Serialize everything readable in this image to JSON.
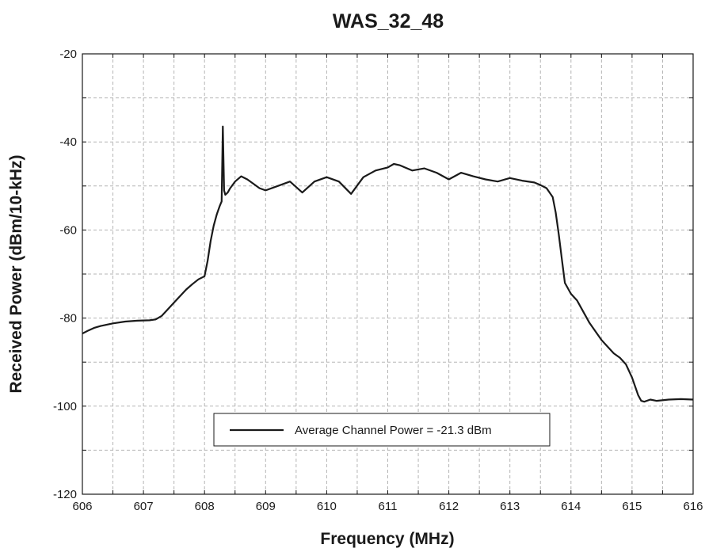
{
  "chart_data": {
    "type": "line",
    "title": "WAS_32_48",
    "xlabel": "Frequency (MHz)",
    "ylabel": "Received Power (dBm/10-kHz)",
    "xlim": [
      606,
      616
    ],
    "ylim": [
      -120,
      -20
    ],
    "xticks": [
      "606",
      "607",
      "608",
      "609",
      "610",
      "611",
      "612",
      "613",
      "614",
      "615",
      "616"
    ],
    "yticks": [
      "-20",
      "-40",
      "-60",
      "-80",
      "-100",
      "-120"
    ],
    "grid": true,
    "legend": {
      "placement": "lower-center",
      "entries": [
        "Average Channel Power = -21.3 dBm"
      ]
    },
    "series": [
      {
        "name": "Average Channel Power = -21.3 dBm",
        "color": "#1a1a1a",
        "x": [
          606.0,
          606.1,
          606.2,
          606.3,
          606.4,
          606.5,
          606.7,
          606.9,
          607.1,
          607.2,
          607.3,
          607.4,
          607.5,
          607.6,
          607.7,
          607.8,
          607.9,
          608.0,
          608.05,
          608.1,
          608.15,
          608.2,
          608.25,
          608.28,
          608.3,
          608.32,
          608.34,
          608.38,
          608.42,
          608.5,
          608.6,
          608.7,
          608.8,
          608.9,
          609.0,
          609.2,
          609.4,
          609.6,
          609.8,
          610.0,
          610.2,
          610.4,
          610.6,
          610.8,
          611.0,
          611.1,
          611.2,
          611.4,
          611.6,
          611.8,
          612.0,
          612.2,
          612.4,
          612.6,
          612.8,
          613.0,
          613.2,
          613.4,
          613.5,
          613.6,
          613.7,
          613.75,
          613.8,
          613.85,
          613.9,
          614.0,
          614.1,
          614.2,
          614.3,
          614.4,
          614.5,
          614.6,
          614.7,
          614.8,
          614.9,
          615.0,
          615.1,
          615.15,
          615.2,
          615.3,
          615.4,
          615.6,
          615.8,
          616.0
        ],
        "y": [
          -83.5,
          -82.8,
          -82.2,
          -81.8,
          -81.5,
          -81.2,
          -80.8,
          -80.6,
          -80.5,
          -80.3,
          -79.5,
          -78.0,
          -76.5,
          -75.0,
          -73.5,
          -72.3,
          -71.2,
          -70.5,
          -67.0,
          -62.5,
          -59.0,
          -56.5,
          -54.5,
          -53.5,
          -36.5,
          -51.0,
          -52.0,
          -51.5,
          -50.5,
          -49.0,
          -47.8,
          -48.5,
          -49.5,
          -50.5,
          -51.0,
          -50.0,
          -49.0,
          -51.5,
          -49.0,
          -48.0,
          -49.0,
          -51.8,
          -48.0,
          -46.5,
          -45.8,
          -45.0,
          -45.3,
          -46.5,
          -46.0,
          -47.0,
          -48.5,
          -47.0,
          -47.8,
          -48.5,
          -49.0,
          -48.2,
          -48.8,
          -49.2,
          -49.8,
          -50.5,
          -52.5,
          -56.0,
          -61.0,
          -66.5,
          -72.0,
          -74.5,
          -76.0,
          -78.5,
          -81.0,
          -83.0,
          -85.0,
          -86.5,
          -88.0,
          -89.0,
          -90.5,
          -93.5,
          -97.5,
          -98.8,
          -99.0,
          -98.5,
          -98.8,
          -98.5,
          -98.4,
          -98.5
        ]
      }
    ]
  }
}
